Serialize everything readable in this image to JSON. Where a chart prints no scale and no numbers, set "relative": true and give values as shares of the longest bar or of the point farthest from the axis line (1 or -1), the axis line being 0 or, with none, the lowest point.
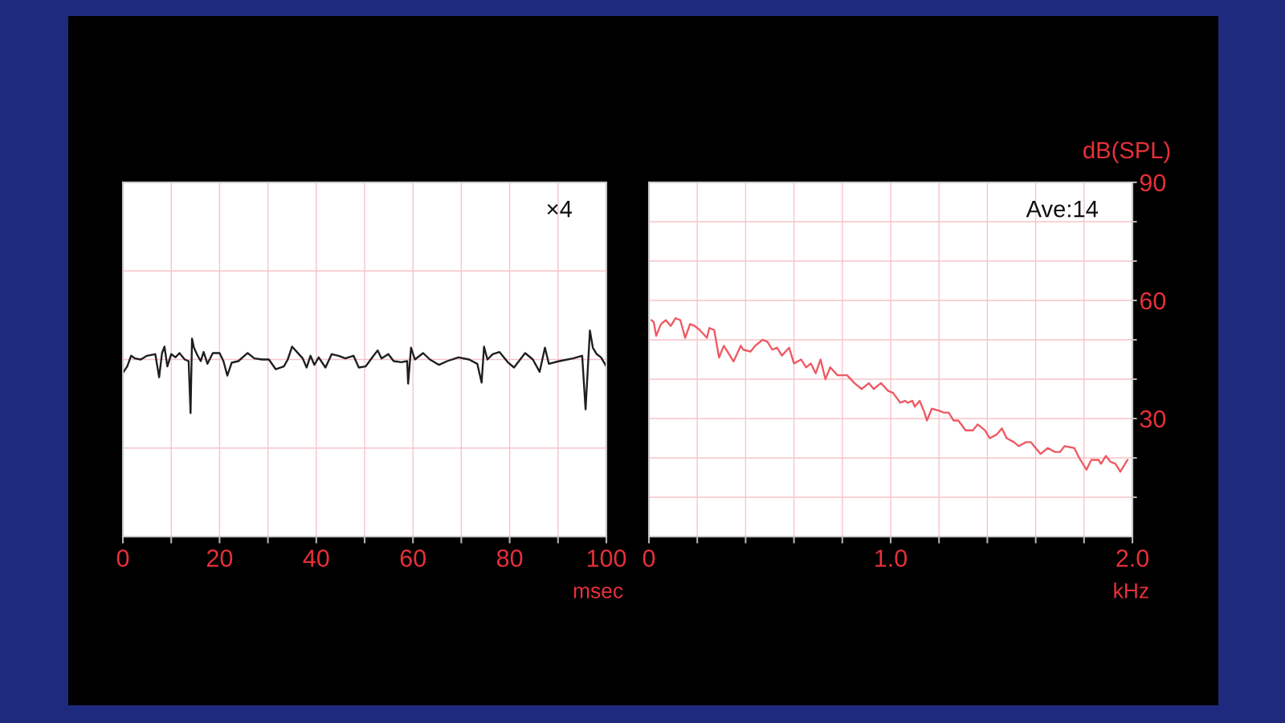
{
  "chart_data": [
    {
      "type": "line",
      "relative": true,
      "xlabel": "msec",
      "annotations": [
        "×4"
      ],
      "grid": true,
      "xlim": [
        0,
        100
      ],
      "xticks": [
        0,
        {
          "value": 10,
          "label": null
        },
        20,
        {
          "value": 30,
          "label": null
        },
        40,
        {
          "value": 50,
          "label": null
        },
        60,
        {
          "value": 70,
          "label": null
        },
        80,
        {
          "value": 90,
          "label": null
        },
        100
      ],
      "x": [
        0,
        0.9,
        1.7,
        2.5,
        3.7,
        5.0,
        6.7,
        7.5,
        8.1,
        8.6,
        9.2,
        10.0,
        10.9,
        11.7,
        12.8,
        13.6,
        14.0,
        14.3,
        14.7,
        15.3,
        16.1,
        16.7,
        17.5,
        18.6,
        20.0,
        20.8,
        21.6,
        22.5,
        23.9,
        25.8,
        27.2,
        28.8,
        30.2,
        31.6,
        33.3,
        34.1,
        35.0,
        36.0,
        37.2,
        38.0,
        38.8,
        39.6,
        40.5,
        41.9,
        43.2,
        44.6,
        46.0,
        47.7,
        48.8,
        50.2,
        51.6,
        52.7,
        53.5,
        54.9,
        56.0,
        57.6,
        58.8,
        59.0,
        59.6,
        60.4,
        62.1,
        63.5,
        65.4,
        67.1,
        69.4,
        71.6,
        73.3,
        74.2,
        74.7,
        75.4,
        76.5,
        77.9,
        79.6,
        80.9,
        83.2,
        84.8,
        86.2,
        87.3,
        88.1,
        90.3,
        93.1,
        95.0,
        95.7,
        96.6,
        97.2,
        98.0,
        98.9,
        100
      ],
      "series": [
        {
          "color": "#1e1e1e",
          "values": [
            -0.25,
            -0.13,
            0.07,
            0.02,
            0,
            0.07,
            0.1,
            -0.33,
            0.12,
            0.24,
            -0.13,
            0.1,
            0.04,
            0.12,
            0,
            -0.03,
            -1.0,
            0.39,
            0.22,
            0.1,
            -0.03,
            0.14,
            -0.08,
            0.12,
            0.12,
            -0.03,
            -0.3,
            -0.06,
            -0.03,
            0.12,
            0.02,
            0,
            0,
            -0.18,
            -0.13,
            0,
            0.24,
            0.14,
            0.02,
            -0.15,
            0.07,
            -0.1,
            0.04,
            -0.15,
            0.1,
            0.07,
            0.02,
            0.07,
            -0.15,
            -0.13,
            0.04,
            0.17,
            0.02,
            0.1,
            -0.03,
            -0.05,
            -0.03,
            -0.45,
            0.22,
            0,
            0.12,
            0,
            -0.1,
            -0.03,
            0.04,
            0,
            -0.08,
            -0.43,
            0.24,
            0,
            0.1,
            0.14,
            -0.05,
            -0.15,
            0.12,
            0,
            -0.23,
            0.22,
            -0.08,
            -0.03,
            0.02,
            0.07,
            -0.93,
            0.54,
            0.22,
            0.1,
            0.04,
            -0.13
          ]
        }
      ]
    },
    {
      "type": "line",
      "xlabel": "kHz",
      "y2label": "dB(SPL)",
      "annotations": [
        "Ave:14"
      ],
      "grid": true,
      "xlim": [
        0,
        2
      ],
      "xticks": [
        0,
        {
          "value": 0.2,
          "label": null
        },
        {
          "value": 0.4,
          "label": null
        },
        {
          "value": 0.6,
          "label": null
        },
        {
          "value": 0.8,
          "label": null
        },
        {
          "value": 1,
          "label": "1.0"
        },
        {
          "value": 1.2,
          "label": null
        },
        {
          "value": 1.4,
          "label": null
        },
        {
          "value": 1.6,
          "label": null
        },
        {
          "value": 1.8,
          "label": null
        },
        {
          "value": 2,
          "label": "2.0"
        }
      ],
      "y2lim": [
        0,
        90
      ],
      "y2ticks": [
        {
          "value": 10,
          "label": null
        },
        {
          "value": 20,
          "label": null
        },
        30,
        {
          "value": 40,
          "label": null
        },
        {
          "value": 50,
          "label": null
        },
        60,
        {
          "value": 70,
          "label": null
        },
        {
          "value": 80,
          "label": null
        },
        90
      ],
      "x": [
        0.01,
        0.02,
        0.03,
        0.05,
        0.07,
        0.09,
        0.11,
        0.13,
        0.15,
        0.17,
        0.19,
        0.21,
        0.24,
        0.25,
        0.27,
        0.29,
        0.31,
        0.33,
        0.35,
        0.38,
        0.39,
        0.42,
        0.44,
        0.47,
        0.49,
        0.51,
        0.53,
        0.55,
        0.58,
        0.6,
        0.63,
        0.65,
        0.67,
        0.69,
        0.71,
        0.73,
        0.75,
        0.78,
        0.8,
        0.82,
        0.85,
        0.88,
        0.91,
        0.93,
        0.96,
        0.99,
        1.01,
        1.04,
        1.06,
        1.07,
        1.09,
        1.1,
        1.12,
        1.14,
        1.15,
        1.17,
        1.2,
        1.22,
        1.24,
        1.26,
        1.28,
        1.31,
        1.34,
        1.36,
        1.39,
        1.41,
        1.44,
        1.46,
        1.48,
        1.51,
        1.53,
        1.56,
        1.58,
        1.62,
        1.65,
        1.68,
        1.7,
        1.72,
        1.76,
        1.78,
        1.81,
        1.83,
        1.86,
        1.87,
        1.89,
        1.91,
        1.93,
        1.95,
        1.98
      ],
      "series": [
        {
          "color": "#ee5a64",
          "axis": "y2",
          "values": [
            55,
            54.5,
            51,
            54,
            55,
            53.5,
            55.5,
            55,
            50.5,
            54,
            53.5,
            52.5,
            50.5,
            53,
            52.5,
            45.5,
            48.5,
            46.5,
            44.5,
            48.5,
            47.5,
            47,
            48.5,
            50,
            49.5,
            47.5,
            48,
            46,
            48,
            44,
            45,
            43,
            44,
            41.5,
            45,
            40,
            43,
            41,
            41,
            41,
            39,
            37.5,
            39,
            37.5,
            39,
            37,
            36.5,
            34,
            34.5,
            34,
            34.5,
            33,
            34.5,
            31.5,
            29.5,
            32.5,
            32,
            31.5,
            31.5,
            29.5,
            29.5,
            27,
            27,
            28.5,
            27,
            25,
            26,
            27.5,
            25,
            24,
            23,
            24,
            24,
            21,
            22.5,
            21.5,
            21.5,
            23,
            22.5,
            20,
            17,
            19.5,
            19.5,
            18.5,
            20.5,
            19,
            18.5,
            16.5,
            19.5
          ]
        }
      ]
    }
  ]
}
